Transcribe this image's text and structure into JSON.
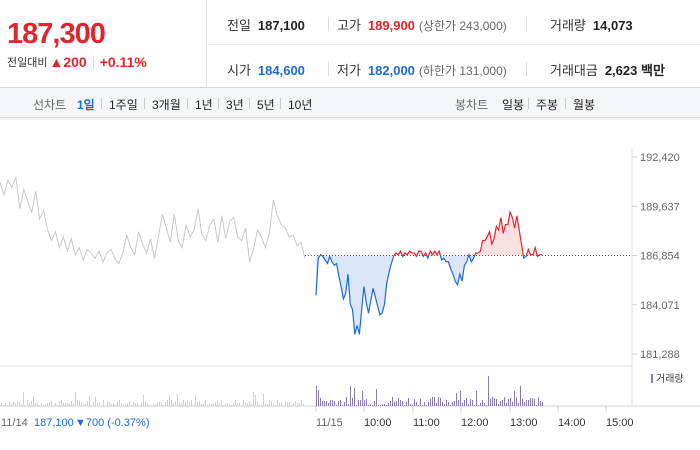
{
  "quote": {
    "price": "187,300",
    "change_label": "전일대비",
    "change_arrow": "▲",
    "change_value": "200",
    "change_pct": "+0.11%"
  },
  "stats": {
    "prev_label": "전일",
    "prev_value": "187,100",
    "high_label": "고가",
    "high_value": "189,900",
    "upper_limit": "(상한가 243,000)",
    "volume_label": "거래량",
    "volume_value": "14,073",
    "open_label": "시가",
    "open_value": "184,600",
    "low_label": "저가",
    "low_value": "182,000",
    "lower_limit": "(하한가 131,000)",
    "amount_label": "거래대금",
    "amount_value": "2,623 백만"
  },
  "tabs": {
    "line_label": "선차트",
    "line_periods": [
      "1일",
      "1주일",
      "3개월",
      "1년",
      "3년",
      "5년",
      "10년"
    ],
    "active_period": "1일",
    "candle_label": "봉차트",
    "candle_periods": [
      "일봉",
      "주봉",
      "월봉"
    ]
  },
  "colors": {
    "up": "#e0262d",
    "down": "#1d6ad6",
    "prev_day": "#c8c8c8",
    "volume": "#8a7cae"
  },
  "chart_data": {
    "type": "line",
    "title": "",
    "xlabel": "",
    "ylabel": "",
    "ylim": [
      181288,
      192420
    ],
    "y_ticks": [
      "192,420",
      "189,637",
      "186,854",
      "184,071",
      "181,288"
    ],
    "reference_line": 186854,
    "x_ticks": [
      "10:00",
      "11:00",
      "12:00",
      "13:00",
      "14:00",
      "15:00"
    ],
    "prev_day_label": "11/14",
    "prev_day_close": "187,100",
    "prev_day_change": "▼700 (-0.37%)",
    "today_label": "11/15",
    "volume_legend": "거래량",
    "series": [
      {
        "values": [
          191000,
          190300,
          191100,
          190700,
          191300,
          189500,
          190600,
          189900,
          189300,
          190500,
          188900,
          189400,
          188300,
          187700,
          188200,
          187300,
          187900,
          187100,
          187800,
          186900,
          187300,
          186600,
          187200,
          187000,
          186700,
          187100,
          186500,
          187000,
          187200,
          186700,
          186400,
          187000,
          188000,
          187300,
          186900,
          188200,
          187500,
          187000,
          187800,
          186700,
          187900,
          189200,
          188400,
          187600,
          189200,
          187700,
          187300,
          188600,
          187900,
          188300,
          189500,
          188000,
          187700,
          188600,
          188900,
          187600,
          189100,
          187800,
          188800,
          189000,
          187900,
          187700,
          188400,
          186500,
          187200,
          188300,
          187900,
          187300,
          188100,
          190000,
          189100,
          188600,
          188400,
          187900,
          188000,
          187400,
          187600,
          186700
        ]
      },
      {
        "values": [
          184600,
          186700,
          186900,
          186800,
          186600,
          186400,
          186800,
          186500,
          186300,
          186400,
          185700,
          185100,
          184400,
          184700,
          185800,
          184100,
          183800,
          182400,
          182900,
          182400,
          183800,
          185100,
          184200,
          183600,
          184300,
          185000,
          184500,
          184000,
          183500,
          183600,
          184100,
          185300,
          185900,
          186400,
          186800,
          187000,
          186900,
          187100,
          186800,
          187000,
          186900,
          187100,
          187000,
          187000,
          186800,
          187100,
          187100,
          186800,
          187000,
          186700,
          187100,
          186900,
          187100,
          186900,
          187100,
          186600,
          186700,
          186500,
          186500,
          186100,
          185800,
          185400,
          185200,
          185800,
          185400,
          186300,
          186500,
          186900,
          186500,
          186700,
          187000,
          187000,
          187100,
          187700,
          187700,
          187900,
          188200,
          187500,
          187800,
          188500,
          188300,
          189000,
          188100,
          188600,
          188600,
          189300,
          189000,
          188400,
          189100,
          188300,
          187500,
          186700,
          186800,
          187200,
          186900,
          186900,
          187300,
          186800,
          186900,
          186900
        ]
      }
    ]
  }
}
